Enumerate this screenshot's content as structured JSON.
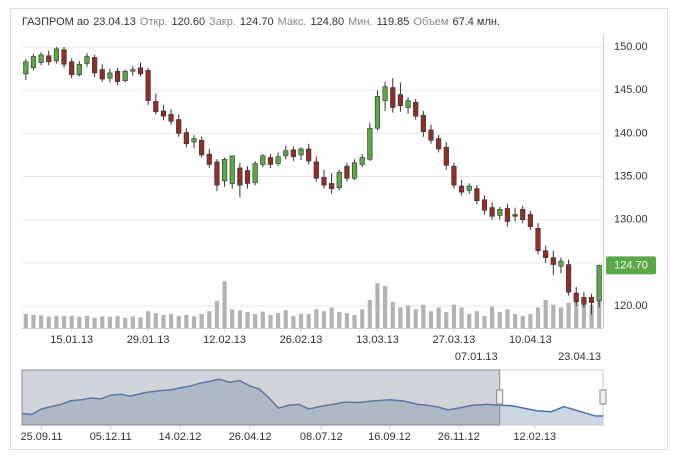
{
  "chart_data": {
    "type": "candlestick",
    "header": {
      "name": "ГАЗПРОМ ао",
      "date": "23.04.13",
      "fields": [
        {
          "label": "Откр.",
          "value": "120.60"
        },
        {
          "label": "Закр.",
          "value": "124.70"
        },
        {
          "label": "Макс.",
          "value": "124.80"
        },
        {
          "label": "Мин.",
          "value": "119.85"
        },
        {
          "label": "Объем",
          "value": "67.4 млн."
        }
      ]
    },
    "x": [
      "2013-01-03",
      "2013-01-04",
      "2013-01-09",
      "2013-01-10",
      "2013-01-11",
      "2013-01-14",
      "2013-01-15",
      "2013-01-16",
      "2013-01-17",
      "2013-01-18",
      "2013-01-21",
      "2013-01-22",
      "2013-01-23",
      "2013-01-24",
      "2013-01-25",
      "2013-01-28",
      "2013-01-29",
      "2013-01-30",
      "2013-01-31",
      "2013-02-01",
      "2013-02-04",
      "2013-02-05",
      "2013-02-06",
      "2013-02-07",
      "2013-02-08",
      "2013-02-11",
      "2013-02-12",
      "2013-02-13",
      "2013-02-14",
      "2013-02-15",
      "2013-02-18",
      "2013-02-19",
      "2013-02-20",
      "2013-02-21",
      "2013-02-22",
      "2013-02-25",
      "2013-02-26",
      "2013-02-27",
      "2013-02-28",
      "2013-03-01",
      "2013-03-04",
      "2013-03-05",
      "2013-03-06",
      "2013-03-07",
      "2013-03-11",
      "2013-03-12",
      "2013-03-13",
      "2013-03-14",
      "2013-03-15",
      "2013-03-18",
      "2013-03-19",
      "2013-03-20",
      "2013-03-21",
      "2013-03-22",
      "2013-03-25",
      "2013-03-26",
      "2013-03-27",
      "2013-03-28",
      "2013-03-29",
      "2013-04-01",
      "2013-04-02",
      "2013-04-03",
      "2013-04-04",
      "2013-04-05",
      "2013-04-08",
      "2013-04-09",
      "2013-04-10",
      "2013-04-11",
      "2013-04-12",
      "2013-04-15",
      "2013-04-16",
      "2013-04-17",
      "2013-04-18",
      "2013-04-19",
      "2013-04-22",
      "2013-04-23"
    ],
    "open": [
      146.9,
      147.6,
      148.2,
      149.0,
      148.4,
      149.7,
      148.3,
      146.8,
      148.1,
      148.8,
      147.4,
      146.4,
      147.2,
      146.1,
      147.2,
      147.6,
      147.3,
      143.7,
      142.6,
      142.2,
      141.6,
      140.1,
      139.0,
      139.2,
      137.6,
      136.7,
      134.5,
      134.2,
      136.0,
      135.7,
      134.3,
      136.4,
      137.2,
      136.5,
      137.4,
      138.1,
      137.5,
      138.2,
      136.7,
      134.9,
      134.2,
      133.7,
      136.2,
      134.8,
      136.4,
      137.0,
      140.6,
      143.8,
      145.3,
      144.5,
      143.0,
      143.6,
      142.1,
      140.4,
      139.4,
      138.4,
      136.2,
      133.9,
      133.4,
      133.6,
      132.3,
      131.4,
      130.5,
      131.3,
      130.6,
      131.2,
      130.6,
      129.0,
      126.4,
      125.6,
      124.6,
      124.8,
      121.5,
      121.0,
      121.0,
      120.6
    ],
    "high": [
      148.6,
      149.2,
      149.4,
      149.6,
      150.0,
      150.0,
      148.7,
      148.4,
      149.3,
      149.1,
      148.0,
      147.5,
      147.6,
      147.4,
      147.8,
      148.2,
      147.6,
      144.6,
      143.3,
      142.8,
      142.2,
      140.6,
      139.8,
      139.6,
      138.2,
      137.0,
      137.2,
      137.4,
      136.6,
      136.2,
      136.8,
      137.6,
      137.6,
      137.8,
      138.6,
      138.5,
      138.4,
      138.8,
      137.3,
      135.8,
      135.4,
      135.8,
      136.6,
      137.0,
      137.6,
      141.2,
      145.0,
      146.0,
      146.4,
      145.9,
      144.2,
      144.0,
      142.6,
      141.0,
      139.8,
      139.0,
      136.6,
      134.6,
      134.2,
      134.0,
      132.8,
      132.0,
      131.5,
      131.8,
      131.4,
      131.6,
      131.0,
      129.6,
      127.0,
      126.4,
      125.6,
      125.4,
      122.2,
      121.6,
      121.4,
      124.8
    ],
    "low": [
      146.2,
      147.3,
      147.9,
      147.9,
      148.1,
      147.6,
      146.4,
      146.6,
      147.7,
      146.5,
      146.0,
      145.9,
      145.6,
      145.9,
      146.7,
      146.6,
      143.3,
      142.2,
      141.5,
      141.0,
      139.6,
      138.4,
      138.3,
      137.2,
      136.0,
      133.3,
      133.8,
      133.6,
      132.6,
      133.6,
      134.0,
      136.1,
      136.0,
      136.2,
      137.0,
      136.8,
      136.9,
      136.4,
      134.4,
      133.6,
      133.0,
      133.4,
      134.4,
      134.6,
      136.1,
      136.8,
      140.3,
      142.6,
      142.4,
      142.5,
      142.3,
      141.6,
      139.6,
      138.8,
      137.8,
      135.8,
      133.6,
      132.8,
      133.0,
      131.8,
      130.6,
      130.0,
      130.0,
      129.2,
      129.8,
      129.6,
      128.8,
      126.0,
      125.0,
      123.6,
      123.8,
      121.2,
      120.0,
      119.8,
      119.0,
      119.85
    ],
    "close": [
      148.3,
      148.9,
      149.1,
      148.3,
      149.8,
      148.0,
      146.8,
      148.0,
      148.9,
      147.0,
      146.3,
      147.0,
      146.0,
      147.2,
      147.4,
      146.9,
      143.8,
      142.5,
      142.0,
      141.4,
      140.0,
      138.8,
      139.4,
      137.5,
      136.4,
      134.0,
      137.0,
      137.4,
      134.0,
      134.2,
      136.5,
      137.4,
      136.4,
      137.3,
      138.0,
      137.3,
      138.2,
      136.8,
      134.8,
      134.0,
      133.6,
      135.5,
      134.8,
      136.6,
      137.2,
      140.6,
      144.3,
      145.4,
      143.0,
      143.2,
      143.8,
      142.0,
      140.2,
      139.2,
      138.2,
      136.3,
      134.0,
      133.2,
      133.9,
      132.2,
      131.1,
      130.4,
      131.2,
      129.8,
      130.4,
      130.0,
      129.2,
      126.4,
      125.6,
      124.8,
      125.2,
      121.6,
      120.5,
      120.2,
      120.4,
      124.7
    ],
    "volumes": [
      30,
      28,
      27,
      24,
      26,
      25,
      26,
      24,
      26,
      22,
      25,
      24,
      26,
      22,
      25,
      23,
      36,
      32,
      28,
      30,
      26,
      28,
      25,
      30,
      36,
      58,
      100,
      40,
      38,
      34,
      30,
      35,
      28,
      32,
      38,
      26,
      30,
      30,
      40,
      36,
      44,
      34,
      32,
      28,
      40,
      60,
      96,
      90,
      56,
      44,
      48,
      40,
      50,
      36,
      44,
      34,
      50,
      44,
      30,
      36,
      26,
      46,
      34,
      40,
      30,
      26,
      30,
      44,
      60,
      50,
      44,
      54,
      74,
      52,
      50,
      67.4
    ],
    "up_color": "#5aa846",
    "down_color": "#8e2f2a",
    "volume_color": "#b3b3b3",
    "ylim": [
      117.45,
      151.4
    ],
    "yticks": [
      {
        "value": 120,
        "label": "120.00"
      },
      {
        "value": 125,
        "label": "125.00"
      },
      {
        "value": 130,
        "label": "130.00"
      },
      {
        "value": 135,
        "label": "135.00"
      },
      {
        "value": 140,
        "label": "140.00"
      },
      {
        "value": 145,
        "label": "145.00"
      },
      {
        "value": 150,
        "label": "150.00"
      }
    ],
    "volume_lim": [
      0,
      135
    ],
    "xticks": [
      {
        "value": "2013-01-15",
        "label": "15.01.13"
      },
      {
        "value": "2013-01-29",
        "label": "29.01.13"
      },
      {
        "value": "2013-02-12",
        "label": "12.02.13"
      },
      {
        "value": "2013-02-26",
        "label": "26.02.13"
      },
      {
        "value": "2013-03-13",
        "label": "13.03.13"
      },
      {
        "value": "2013-03-27",
        "label": "27.03.13"
      },
      {
        "value": "2013-04-10",
        "label": "10.04.13"
      }
    ],
    "grid": true,
    "last_price": {
      "value": 124.7,
      "label": "124.70"
    },
    "navigator": {
      "x": [
        "2011-09-05",
        "2011-09-15",
        "2011-09-25",
        "2011-10-05",
        "2011-10-15",
        "2011-10-25",
        "2011-11-05",
        "2011-11-15",
        "2011-11-25",
        "2011-12-05",
        "2011-12-15",
        "2011-12-25",
        "2012-01-10",
        "2012-01-25",
        "2012-02-05",
        "2012-02-14",
        "2012-02-25",
        "2012-03-05",
        "2012-03-15",
        "2012-03-25",
        "2012-04-05",
        "2012-04-15",
        "2012-04-26",
        "2012-05-05",
        "2012-05-15",
        "2012-05-25",
        "2012-06-05",
        "2012-06-15",
        "2012-06-25",
        "2012-07-08",
        "2012-07-20",
        "2012-08-01",
        "2012-08-15",
        "2012-09-01",
        "2012-09-16",
        "2012-10-01",
        "2012-10-15",
        "2012-10-25",
        "2012-11-05",
        "2012-11-15",
        "2012-11-26",
        "2012-12-10",
        "2012-12-25",
        "2013-01-07",
        "2013-01-20",
        "2013-02-05",
        "2013-02-14",
        "2013-03-01",
        "2013-03-14",
        "2013-03-25",
        "2013-04-05",
        "2013-04-15",
        "2013-04-23"
      ],
      "values": [
        130,
        128,
        140,
        145,
        150,
        158,
        160,
        164,
        162,
        170,
        172,
        168,
        176,
        180,
        182,
        186,
        190,
        196,
        200,
        205,
        198,
        202,
        190,
        184,
        165,
        142,
        148,
        150,
        140,
        146,
        150,
        155,
        154,
        158,
        160,
        157,
        150,
        148,
        144,
        138,
        142,
        148,
        150,
        148,
        147,
        140,
        136,
        134,
        145,
        138,
        131,
        125,
        124.7
      ],
      "xlim": [
        "2011-09-05",
        "2013-04-23"
      ],
      "ylim": [
        105,
        225
      ],
      "xticks": [
        {
          "value": "2011-09-25",
          "label": "25.09.11"
        },
        {
          "value": "2011-12-05",
          "label": "05.12.11"
        },
        {
          "value": "2012-02-14",
          "label": "14.02.12"
        },
        {
          "value": "2012-04-26",
          "label": "26.04.12"
        },
        {
          "value": "2012-07-08",
          "label": "08.07.12"
        },
        {
          "value": "2012-09-16",
          "label": "16.09.12"
        },
        {
          "value": "2012-11-26",
          "label": "26.11.12"
        },
        {
          "value": "2013-02-12",
          "label": "12.02.13"
        }
      ],
      "selection": [
        {
          "value": "2013-01-07",
          "label": "07.01.13"
        },
        {
          "value": "2013-04-23",
          "label": "23.04.13"
        }
      ],
      "color": "#4f72a6",
      "fill": "#b7c5d9"
    }
  }
}
